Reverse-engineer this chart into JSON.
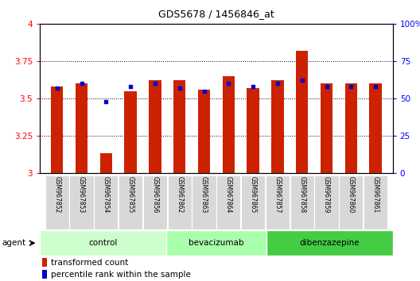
{
  "title": "GDS5678 / 1456846_at",
  "samples": [
    "GSM967852",
    "GSM967853",
    "GSM967854",
    "GSM967855",
    "GSM967856",
    "GSM967862",
    "GSM967863",
    "GSM967864",
    "GSM967865",
    "GSM967857",
    "GSM967858",
    "GSM967859",
    "GSM967860",
    "GSM967861"
  ],
  "red_values": [
    3.58,
    3.6,
    3.13,
    3.55,
    3.62,
    3.62,
    3.56,
    3.65,
    3.57,
    3.62,
    3.82,
    3.6,
    3.6,
    3.6
  ],
  "blue_values": [
    57,
    60,
    48,
    58,
    60,
    57,
    55,
    60,
    58,
    60,
    62,
    58,
    58,
    58
  ],
  "ylim_left": [
    3.0,
    4.0
  ],
  "ylim_right": [
    0,
    100
  ],
  "yticks_left": [
    3.0,
    3.25,
    3.5,
    3.75,
    4.0
  ],
  "yticks_right": [
    0,
    25,
    50,
    75,
    100
  ],
  "ytick_labels_left": [
    "3",
    "3.25",
    "3.5",
    "3.75",
    "4"
  ],
  "ytick_labels_right": [
    "0",
    "25",
    "50",
    "75",
    "100%"
  ],
  "groups": [
    {
      "label": "control",
      "start": 0,
      "end": 5,
      "color": "#ccffcc"
    },
    {
      "label": "bevacizumab",
      "start": 5,
      "end": 9,
      "color": "#aaffaa"
    },
    {
      "label": "dibenzazepine",
      "start": 9,
      "end": 14,
      "color": "#44cc44"
    }
  ],
  "bar_color": "#cc2200",
  "dot_color": "#0000cc",
  "bar_width": 0.5,
  "legend_red_label": "transformed count",
  "legend_blue_label": "percentile rank within the sample",
  "agent_label": "agent"
}
